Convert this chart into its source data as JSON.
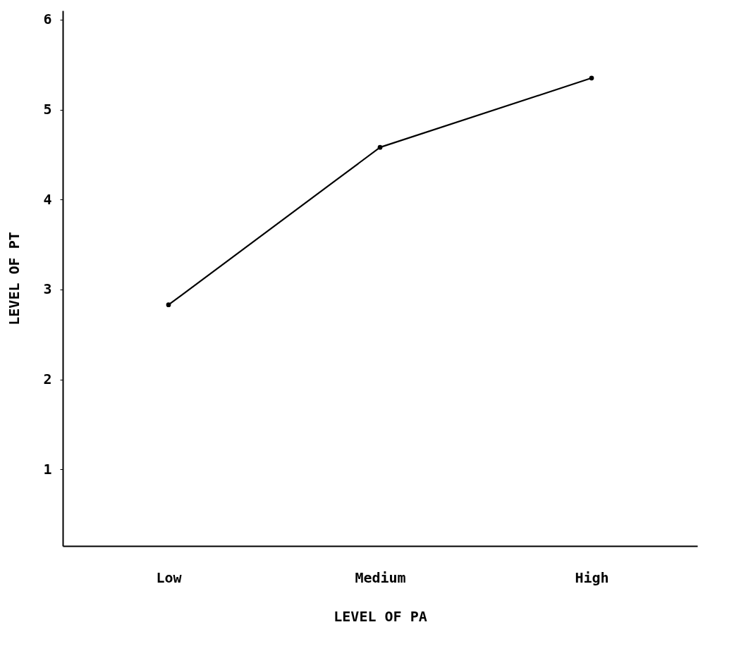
{
  "chart_data": {
    "type": "line",
    "xlabel": "LEVEL OF PA",
    "ylabel": "LEVEL OF PT",
    "categories": [
      "Low",
      "Medium",
      "High"
    ],
    "series": [
      {
        "color": "#000000",
        "values": [
          2.83,
          4.58,
          5.35
        ]
      }
    ],
    "ylim": [
      0.15,
      6.1
    ],
    "yticks": [
      1,
      2,
      3,
      4,
      5,
      6
    ],
    "grid": false,
    "marker": "circle",
    "line_style": "solid"
  }
}
